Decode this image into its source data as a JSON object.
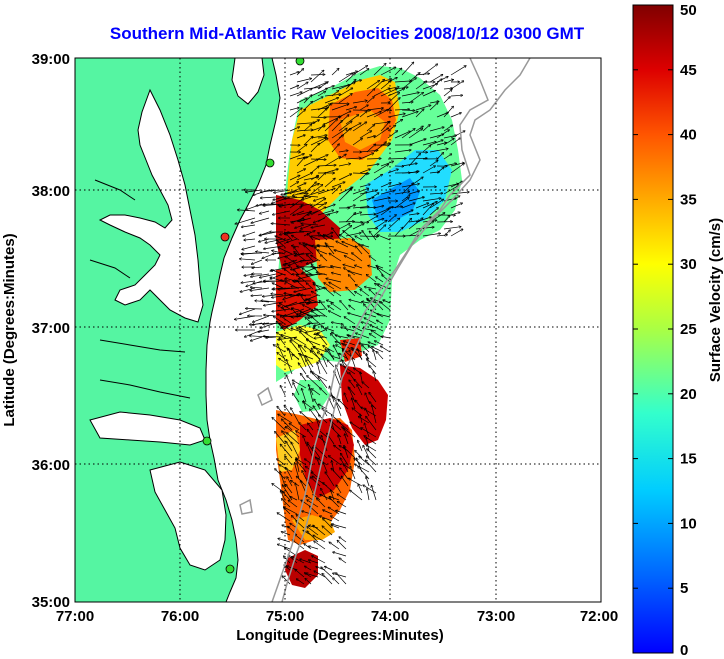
{
  "title": "Southern Mid-Atlantic Raw Velocities 2008/10/12 0300 GMT",
  "axes": {
    "xlabel": "Longitude (Degrees:Minutes)",
    "ylabel": "Latitude (Degrees:Minutes)",
    "x_ticks": [
      "77:00",
      "76:00",
      "75:00",
      "74:00",
      "73:00",
      "72:00"
    ],
    "y_ticks": [
      "39:00",
      "38:00",
      "37:00",
      "36:00",
      "35:00"
    ],
    "x_range": [
      -77,
      -72
    ],
    "y_range": [
      35,
      39
    ],
    "grid": true
  },
  "colorbar": {
    "label": "Surface Velocity (cm/s)",
    "ticks": [
      "50",
      "45",
      "40",
      "35",
      "30",
      "25",
      "20",
      "15",
      "10",
      "5",
      "0"
    ],
    "range": [
      0,
      50
    ],
    "colormap": "jet"
  },
  "colors": {
    "land": "#55f5a2",
    "water": "#ffffff",
    "bathymetry": "#999999",
    "title": "#0000ff"
  }
}
